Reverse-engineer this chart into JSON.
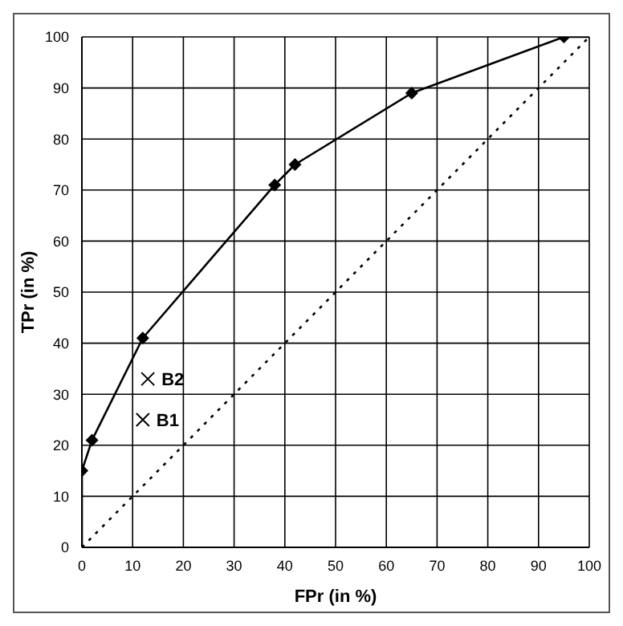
{
  "chart_data": {
    "type": "line",
    "xlabel": "FPr (in %)",
    "ylabel": "TPr (in %)",
    "xlim": [
      0,
      100
    ],
    "ylim": [
      0,
      100
    ],
    "xticks": [
      0,
      10,
      20,
      30,
      40,
      50,
      60,
      70,
      80,
      90,
      100
    ],
    "yticks": [
      0,
      10,
      20,
      30,
      40,
      50,
      60,
      70,
      80,
      90,
      100
    ],
    "grid": true,
    "legend": false,
    "series": [
      {
        "color": "#000000",
        "marker": "none",
        "line_style": "solid",
        "x": [
          0,
          0,
          2,
          12,
          38,
          42,
          65,
          95,
          100
        ],
        "values": [
          0,
          15,
          21,
          41,
          71,
          75,
          89,
          100,
          100
        ]
      },
      {
        "type": "scatter",
        "color": "#000000",
        "marker": "diamond",
        "x": [
          0,
          2,
          12,
          38,
          42,
          65,
          95
        ],
        "values": [
          15,
          21,
          41,
          71,
          75,
          89,
          100
        ]
      },
      {
        "color": "#000000",
        "marker": "none",
        "line_style": "dotted",
        "x": [
          0,
          100
        ],
        "values": [
          0,
          100
        ]
      },
      {
        "type": "scatter",
        "name": "B2",
        "color": "#000000",
        "marker": "cross",
        "x": [
          13
        ],
        "values": [
          33
        ]
      },
      {
        "type": "scatter",
        "name": "B1",
        "color": "#000000",
        "marker": "cross",
        "x": [
          12
        ],
        "values": [
          25
        ]
      }
    ]
  }
}
